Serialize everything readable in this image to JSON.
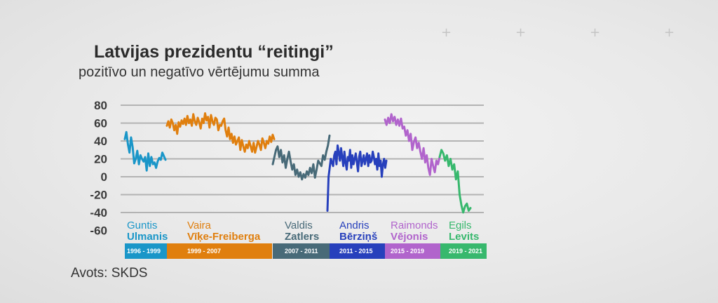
{
  "header": {
    "title": "Latvijas prezidentu “reitingi”",
    "subtitle": "pozitīvo un negatīvo vērtējumu summa"
  },
  "footer": {
    "source": "Avots: SKDS"
  },
  "decor": {
    "plus_glyph": "+"
  },
  "colors": {
    "grid": "#b3b3b3",
    "tick": "#3a3a3a"
  },
  "chart_data": {
    "type": "line",
    "title": "Latvijas prezidentu “reitingi”",
    "subtitle": "pozitīvo un negatīvo vērtējumu summa",
    "ylim": [
      -60,
      80
    ],
    "yticks": [
      "80",
      "60",
      "40",
      "20",
      "0",
      "-20",
      "-40",
      "-60"
    ],
    "grid": true,
    "legend": "none",
    "series": [
      {
        "first_name": "Guntis",
        "last_name": "Ulmanis",
        "period": "1996 - 1999",
        "color": "#1a96c8",
        "values": [
          42,
          50,
          36,
          27,
          44,
          33,
          15,
          20,
          29,
          14,
          24,
          20,
          17,
          22,
          7,
          26,
          12,
          22,
          14,
          16,
          10,
          17,
          21,
          19,
          27,
          23,
          19
        ]
      },
      {
        "first_name": "Vaira",
        "last_name": "Vīķe-Freiberga",
        "period": "1999 - 2007",
        "color": "#e07f0e",
        "values": [
          57,
          62,
          55,
          64,
          60,
          52,
          58,
          48,
          61,
          56,
          63,
          59,
          65,
          58,
          68,
          60,
          64,
          57,
          70,
          62,
          58,
          66,
          61,
          54,
          65,
          60,
          71,
          63,
          67,
          55,
          69,
          62,
          58,
          66,
          64,
          52,
          58,
          57,
          62,
          65,
          52,
          45,
          55,
          42,
          48,
          38,
          45,
          36,
          40,
          44,
          30,
          41,
          34,
          28,
          36,
          32,
          40,
          34,
          28,
          38,
          27,
          33,
          40,
          36,
          30,
          43,
          38,
          32,
          40,
          37,
          45,
          39,
          47,
          42
        ]
      },
      {
        "first_name": "Valdis",
        "last_name": "Zatlers",
        "period": "2007 - 2011",
        "color": "#486a78",
        "values": [
          14,
          22,
          30,
          34,
          22,
          30,
          16,
          24,
          10,
          20,
          28,
          17,
          8,
          14,
          2,
          8,
          0,
          5,
          -3,
          3,
          -1,
          6,
          2,
          10,
          4,
          14,
          -1,
          8,
          18,
          15,
          12,
          24,
          19,
          28,
          35,
          46
        ]
      },
      {
        "first_name": "Andris",
        "last_name": "Bērziņš",
        "period": "2011 - 2015",
        "color": "#2740bc",
        "values": [
          -38,
          0,
          10,
          20,
          16,
          12,
          24,
          28,
          14,
          35,
          27,
          18,
          32,
          22,
          12,
          28,
          16,
          8,
          22,
          18,
          30,
          10,
          24,
          14,
          20,
          26,
          16,
          6,
          22,
          28,
          12,
          18,
          24,
          14,
          20,
          26,
          12,
          24,
          16,
          18,
          28,
          22,
          14,
          20,
          8,
          26,
          12,
          18,
          0,
          14,
          20,
          10,
          18
        ]
      },
      {
        "first_name": "Raimonds",
        "last_name": "Vējonis",
        "period": "2015 - 2019",
        "color": "#b164cc",
        "values": [
          64,
          58,
          66,
          60,
          70,
          62,
          67,
          58,
          64,
          57,
          65,
          54,
          56,
          46,
          52,
          40,
          48,
          30,
          39,
          44,
          32,
          38,
          28,
          20,
          32,
          16,
          24,
          10,
          2,
          20,
          12,
          5,
          18,
          14,
          22
        ]
      },
      {
        "first_name": "Egils",
        "last_name": "Levits",
        "period": "2019 - 2021",
        "color": "#37b86d",
        "values": [
          22,
          30,
          26,
          18,
          24,
          12,
          20,
          8,
          14,
          -3,
          6,
          -20,
          -32,
          -40,
          -33,
          -30,
          -38,
          -35
        ]
      }
    ]
  }
}
